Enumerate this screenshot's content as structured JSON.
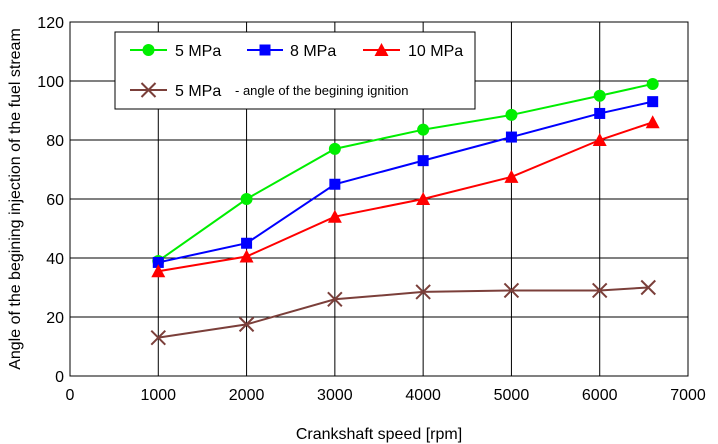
{
  "chart_data": {
    "type": "line",
    "xlabel": "Crankshaft speed [rpm]",
    "ylabel": "Angle of the begining injection of the fuel stream",
    "xlim": [
      0,
      7000
    ],
    "ylim": [
      0,
      120
    ],
    "xticks": [
      "0",
      "1000",
      "2000",
      "3000",
      "4000",
      "5000",
      "6000",
      "7000"
    ],
    "yticks": [
      "0",
      "20",
      "40",
      "60",
      "80",
      "100",
      "120"
    ],
    "grid": true,
    "legend_position": "top-left",
    "series": [
      {
        "name": "5 MPa",
        "color": "#00ee00",
        "marker": "circle",
        "x": [
          1000,
          2000,
          3000,
          4000,
          5000,
          6000,
          6600
        ],
        "y": [
          39,
          60,
          77,
          83.5,
          88.5,
          95,
          99
        ]
      },
      {
        "name": "8 MPa",
        "color": "#0000ff",
        "marker": "square",
        "x": [
          1000,
          2000,
          3000,
          4000,
          5000,
          6000,
          6600
        ],
        "y": [
          38.5,
          45,
          65,
          73,
          81,
          89,
          93
        ]
      },
      {
        "name": "10 MPa",
        "color": "#ff0000",
        "marker": "triangle",
        "x": [
          1000,
          2000,
          3000,
          4000,
          5000,
          6000,
          6600
        ],
        "y": [
          35.5,
          40.5,
          54,
          60,
          67.5,
          80,
          86
        ]
      },
      {
        "name": "5 MPa",
        "note": "- angle of the begining ignition",
        "color": "#7b3f3a",
        "marker": "x",
        "x": [
          1000,
          2000,
          3000,
          4000,
          5000,
          6000,
          6550
        ],
        "y": [
          13,
          17.5,
          26,
          28.5,
          29,
          29,
          30
        ]
      }
    ]
  }
}
